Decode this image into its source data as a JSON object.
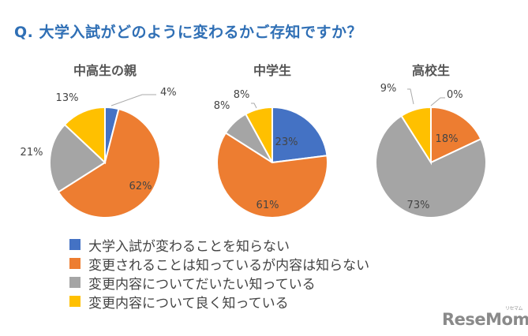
{
  "title": "Q. 大学入試がどのように変わるかご存知ですか？",
  "colors": {
    "blue": "#4472c4",
    "orange": "#ed7d31",
    "gray": "#a5a5a5",
    "yellow": "#ffc000",
    "title": "#2f6fb5"
  },
  "legend": [
    {
      "label": "大学入試が変わることを知らない",
      "color": "#4472c4"
    },
    {
      "label": "変更されることは知っているが内容は知らない",
      "color": "#ed7d31"
    },
    {
      "label": "変更内容についてだいたい知っている",
      "color": "#a5a5a5"
    },
    {
      "label": "変更内容について良く知っている",
      "color": "#ffc000"
    }
  ],
  "pies": [
    {
      "title": "中高生の親"
    },
    {
      "title": "中学生"
    },
    {
      "title": "高校生"
    }
  ],
  "logo": {
    "text": "ReseMom",
    "sub": "リセマム"
  },
  "chart_data": [
    {
      "type": "pie",
      "title": "中高生の親",
      "categories": [
        "大学入試が変わることを知らない",
        "変更されることは知っているが内容は知らない",
        "変更内容についてだいたい知っている",
        "変更内容について良く知っている"
      ],
      "values": [
        4,
        62,
        21,
        13
      ],
      "labels": [
        "4%",
        "62%",
        "21%",
        "13%"
      ]
    },
    {
      "type": "pie",
      "title": "中学生",
      "categories": [
        "大学入試が変わることを知らない",
        "変更されることは知っているが内容は知らない",
        "変更内容についてだいたい知っている",
        "変更内容について良く知っている"
      ],
      "values": [
        23,
        61,
        8,
        8
      ],
      "labels": [
        "23%",
        "61%",
        "8%",
        "8%"
      ]
    },
    {
      "type": "pie",
      "title": "高校生",
      "categories": [
        "大学入試が変わることを知らない",
        "変更されることは知っているが内容は知らない",
        "変更内容についてだいたい知っている",
        "変更内容について良く知っている"
      ],
      "values": [
        0,
        18,
        73,
        9
      ],
      "labels": [
        "0%",
        "18%",
        "73%",
        "9%"
      ]
    }
  ]
}
